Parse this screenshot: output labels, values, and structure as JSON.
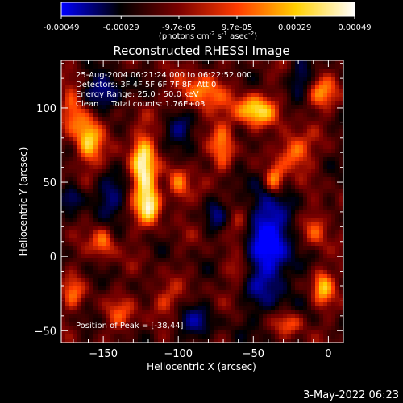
{
  "colorbar": {
    "tick_labels": [
      "-0.00049",
      "-0.00029",
      "-9.7e-05",
      "9.7e-05",
      "0.00029",
      "0.00049"
    ],
    "units": {
      "prefix": "(photons cm",
      "exp1": "-2",
      "mid1": " s",
      "exp2": "-1",
      "mid2": " asec",
      "exp3": "-2",
      "suffix": ")"
    },
    "colormap": [
      "#0000ff",
      "#000000",
      "#7a0000",
      "#ff3b00",
      "#ffd000",
      "#ffffff"
    ]
  },
  "chart_data": {
    "type": "heatmap",
    "title": "Reconstructed RHESSI Image",
    "xlabel": "Heliocentric X (arcsec)",
    "ylabel": "Heliocentric Y (arcsec)",
    "xlim": [
      -178,
      10
    ],
    "ylim": [
      -58,
      132
    ],
    "x_ticks": [
      -150,
      -100,
      -50,
      0
    ],
    "y_ticks": [
      -50,
      0,
      50,
      100
    ],
    "x_tick_labels": [
      "−150",
      "−100",
      "−50",
      "0"
    ],
    "y_tick_labels": [
      "−50",
      "0",
      "50",
      "100"
    ],
    "value_range": [
      -0.00049,
      0.00049
    ],
    "annotations": [
      "25-Aug-2004 06:21:24.000 to 06:22:52.000",
      "Detectors: 3F 4F 5F 6F 7F 8F, Att 0",
      "Energy Range: 25.0 - 50.0 keV",
      "Clean     Total counts: 1.76E+03"
    ],
    "peak_label": "Position of Peak = [-38,44]",
    "peak": [
      -38,
      44
    ],
    "blobs": [
      {
        "x": -124,
        "y": 60,
        "sx": 6,
        "sy": 20,
        "a": 1.0
      },
      {
        "x": -118,
        "y": 35,
        "sx": 5,
        "sy": 8,
        "a": 0.75
      },
      {
        "x": -160,
        "y": 80,
        "sx": 6,
        "sy": 15,
        "a": 0.85
      },
      {
        "x": -170,
        "y": 100,
        "sx": 5,
        "sy": 10,
        "a": 0.6
      },
      {
        "x": -100,
        "y": 48,
        "sx": 5,
        "sy": 10,
        "a": 0.6
      },
      {
        "x": -86,
        "y": 110,
        "sx": 10,
        "sy": 10,
        "a": 0.65
      },
      {
        "x": -50,
        "y": 98,
        "sx": 10,
        "sy": 8,
        "a": 0.9
      },
      {
        "x": -36,
        "y": 50,
        "sx": 5,
        "sy": 8,
        "a": 1.0
      },
      {
        "x": -24,
        "y": 70,
        "sx": 8,
        "sy": 9,
        "a": 0.75
      },
      {
        "x": -70,
        "y": 72,
        "sx": 5,
        "sy": 14,
        "a": 0.6
      },
      {
        "x": -5,
        "y": 110,
        "sx": 8,
        "sy": 8,
        "a": 0.55
      },
      {
        "x": -8,
        "y": 20,
        "sx": 6,
        "sy": 10,
        "a": 0.55
      },
      {
        "x": -4,
        "y": -20,
        "sx": 5,
        "sy": 9,
        "a": 0.75
      },
      {
        "x": -26,
        "y": -45,
        "sx": 7,
        "sy": 6,
        "a": 0.55
      },
      {
        "x": -150,
        "y": 10,
        "sx": 5,
        "sy": 8,
        "a": 0.6
      },
      {
        "x": -110,
        "y": -30,
        "sx": 8,
        "sy": 8,
        "a": 0.4
      },
      {
        "x": -140,
        "y": -40,
        "sx": 8,
        "sy": 8,
        "a": 0.35
      },
      {
        "x": -60,
        "y": 20,
        "sx": 6,
        "sy": 8,
        "a": 0.45
      },
      {
        "x": -60,
        "y": -10,
        "sx": 6,
        "sy": 6,
        "a": 0.4
      },
      {
        "x": -170,
        "y": -25,
        "sx": 5,
        "sy": 8,
        "a": 0.45
      },
      {
        "x": -40,
        "y": 10,
        "sx": 12,
        "sy": 30,
        "a": -0.9
      },
      {
        "x": -150,
        "y": 110,
        "sx": 10,
        "sy": 8,
        "a": -0.7
      },
      {
        "x": -100,
        "y": 88,
        "sx": 8,
        "sy": 8,
        "a": -0.55
      },
      {
        "x": -148,
        "y": 40,
        "sx": 8,
        "sy": 10,
        "a": -0.55
      },
      {
        "x": -90,
        "y": -45,
        "sx": 10,
        "sy": 8,
        "a": -0.45
      },
      {
        "x": -18,
        "y": 120,
        "sx": 6,
        "sy": 8,
        "a": -0.5
      },
      {
        "x": -75,
        "y": 30,
        "sx": 5,
        "sy": 8,
        "a": -0.4
      },
      {
        "x": -170,
        "y": 40,
        "sx": 5,
        "sy": 5,
        "a": -0.45
      }
    ]
  },
  "timestamp": "3-May-2022 06:23"
}
